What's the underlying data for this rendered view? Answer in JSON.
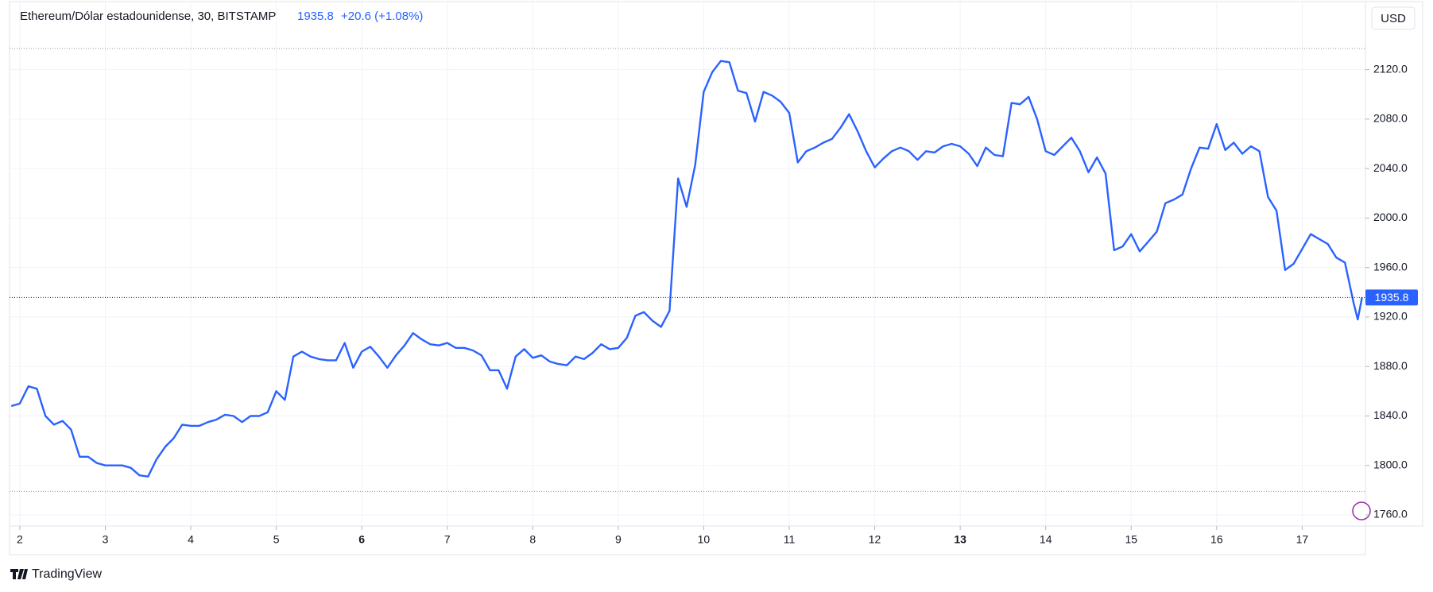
{
  "chart_data": {
    "type": "line",
    "header": {
      "title": "Ethereum/Dólar estadounidense, 30, BITSTAMP",
      "last": "1935.8",
      "change": "+20.6 (+1.08%)"
    },
    "currency": "USD",
    "brand": "TradingView",
    "x": [
      1.9,
      2.0,
      2.1,
      2.2,
      2.3,
      2.4,
      2.5,
      2.6,
      2.7,
      2.8,
      2.9,
      3.0,
      3.1,
      3.2,
      3.3,
      3.4,
      3.5,
      3.6,
      3.7,
      3.8,
      3.9,
      4.0,
      4.1,
      4.2,
      4.3,
      4.4,
      4.5,
      4.6,
      4.7,
      4.8,
      4.9,
      5.0,
      5.1,
      5.2,
      5.3,
      5.4,
      5.5,
      5.6,
      5.7,
      5.8,
      5.9,
      6.0,
      6.1,
      6.2,
      6.3,
      6.4,
      6.5,
      6.6,
      6.7,
      6.8,
      6.9,
      7.0,
      7.1,
      7.2,
      7.3,
      7.4,
      7.5,
      7.6,
      7.7,
      7.8,
      7.9,
      8.0,
      8.1,
      8.2,
      8.3,
      8.4,
      8.5,
      8.6,
      8.7,
      8.8,
      8.9,
      9.0,
      9.1,
      9.2,
      9.3,
      9.4,
      9.5,
      9.6,
      9.7,
      9.8,
      9.9,
      10.0,
      10.1,
      10.2,
      10.3,
      10.4,
      10.5,
      10.6,
      10.7,
      10.8,
      10.9,
      11.0,
      11.1,
      11.2,
      11.3,
      11.4,
      11.5,
      11.6,
      11.7,
      11.8,
      11.9,
      12.0,
      12.1,
      12.2,
      12.3,
      12.4,
      12.5,
      12.6,
      12.7,
      12.8,
      12.9,
      13.0,
      13.1,
      13.2,
      13.3,
      13.4,
      13.5,
      13.6,
      13.7,
      13.8,
      13.9,
      14.0,
      14.1,
      14.2,
      14.3,
      14.4,
      14.5,
      14.6,
      14.7,
      14.8,
      14.9,
      15.0,
      15.1,
      15.2,
      15.3,
      15.4,
      15.5,
      15.6,
      15.7,
      15.8,
      15.9,
      16.0,
      16.1,
      16.2,
      16.3,
      16.4,
      16.5,
      16.6,
      16.7,
      16.8,
      16.9,
      17.0,
      17.1,
      17.2,
      17.3,
      17.4,
      17.5,
      17.6,
      17.65,
      17.7
    ],
    "series": [
      {
        "color": "#2962ff",
        "values": [
          1848,
          1850,
          1864,
          1862,
          1840,
          1833,
          1836,
          1829,
          1807,
          1807,
          1802,
          1800,
          1800,
          1800,
          1798,
          1792,
          1791,
          1805,
          1815,
          1822,
          1833,
          1832,
          1832,
          1835,
          1837,
          1841,
          1840,
          1835,
          1840,
          1840,
          1843,
          1860,
          1853,
          1888,
          1892,
          1888,
          1886,
          1885,
          1885,
          1899,
          1879,
          1892,
          1896,
          1888,
          1879,
          1889,
          1897,
          1907,
          1902,
          1898,
          1897,
          1899,
          1895,
          1895,
          1893,
          1889,
          1877,
          1877,
          1862,
          1888,
          1894,
          1887,
          1889,
          1884,
          1882,
          1881,
          1888,
          1886,
          1891,
          1898,
          1894,
          1895,
          1903,
          1921,
          1924,
          1917,
          1912,
          1925,
          2032,
          2009,
          2043,
          2102,
          2118,
          2127,
          2126,
          2103,
          2101,
          2078,
          2102,
          2099,
          2094,
          2085,
          2045,
          2054,
          2057,
          2061,
          2064,
          2073,
          2084,
          2070,
          2054,
          2041,
          2048,
          2054,
          2057,
          2054,
          2047,
          2054,
          2053,
          2058,
          2060,
          2058,
          2052,
          2042,
          2057,
          2051,
          2050,
          2093,
          2092,
          2098,
          2080,
          2054,
          2051,
          2058,
          2065,
          2054,
          2037,
          2049,
          2036,
          1974,
          1977,
          1987,
          1973,
          1981,
          1989,
          2012,
          2015,
          2019,
          2040,
          2057,
          2056,
          2076,
          2055,
          2061,
          2052,
          2058,
          2054,
          2017,
          2006,
          1958,
          1963,
          1975,
          1987,
          1983,
          1979,
          1968,
          1964,
          1932,
          1918,
          1935.8
        ]
      }
    ],
    "high": 2137,
    "low": 1779,
    "xlim": [
      1.88,
      17.74
    ],
    "xticks": [
      2,
      3,
      4,
      5,
      6,
      7,
      8,
      9,
      10,
      11,
      12,
      13,
      14,
      15,
      16,
      17
    ],
    "bold_xticks": [
      6,
      13
    ],
    "ylim": [
      1751,
      2175
    ],
    "yticks": [
      {
        "value": 1760,
        "label": "1760.0"
      },
      {
        "value": 1800,
        "label": "1800.0"
      },
      {
        "value": 1840,
        "label": "1840.0"
      },
      {
        "value": 1880,
        "label": "1880.0"
      },
      {
        "value": 1920,
        "label": "1920.0"
      },
      {
        "value": 1960,
        "label": "1960.0"
      },
      {
        "value": 2000,
        "label": "2000.0"
      },
      {
        "value": 2040,
        "label": "2040.0"
      },
      {
        "value": 2080,
        "label": "2080.0"
      },
      {
        "value": 2120,
        "label": "2120.0"
      }
    ],
    "grid": true
  }
}
